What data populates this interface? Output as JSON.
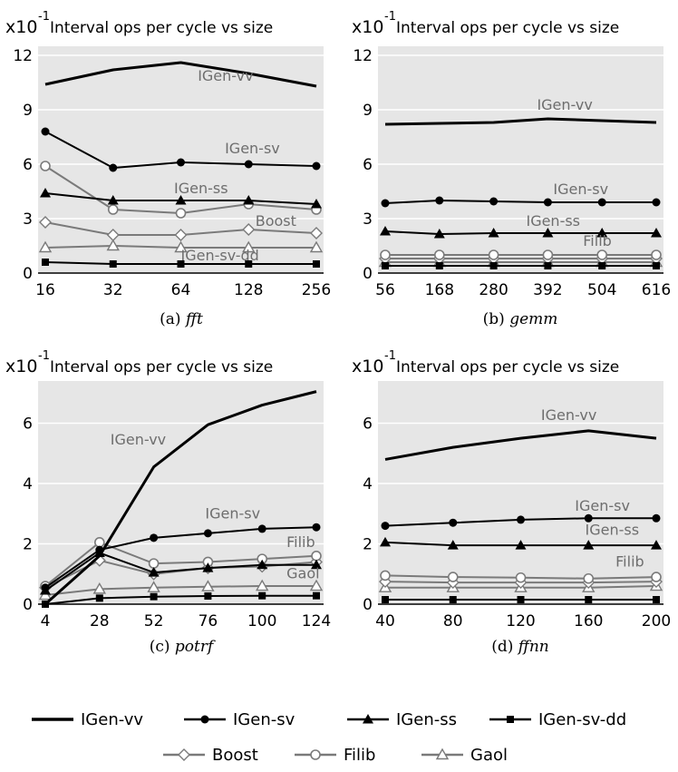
{
  "chart_data": [
    {
      "id": "a",
      "type": "line",
      "scale_label": "x10",
      "scale_exp": "-1",
      "title": "Interval ops per cycle vs size",
      "caption_prefix": "(a) ",
      "caption_name": "fft",
      "xticks": [
        "16",
        "32",
        "64",
        "128",
        "256"
      ],
      "yticks": [
        "0",
        "3",
        "6",
        "9",
        "12"
      ],
      "ylim": [
        0,
        12.5
      ],
      "xlim": [
        0,
        4
      ],
      "series": [
        {
          "name": "IGen-vv",
          "key": "vv",
          "values": [
            10.4,
            11.2,
            11.6,
            11.0,
            10.3
          ],
          "label_at": [
            2.25,
            10.6
          ]
        },
        {
          "name": "IGen-sv",
          "key": "sv",
          "values": [
            7.8,
            5.8,
            6.1,
            6.0,
            5.9
          ],
          "label_at": [
            2.65,
            6.6
          ]
        },
        {
          "name": "IGen-ss",
          "key": "ss",
          "values": [
            4.4,
            4.0,
            4.0,
            4.0,
            3.8
          ],
          "label_at": [
            1.9,
            4.4
          ]
        },
        {
          "name": "Boost",
          "key": "boost",
          "values": [
            2.8,
            2.1,
            2.1,
            2.4,
            2.2
          ],
          "label_at": [
            3.1,
            2.6
          ]
        },
        {
          "name": "Filib",
          "key": "filib",
          "values": [
            5.9,
            3.5,
            3.3,
            3.8,
            3.5
          ],
          "label_at": null
        },
        {
          "name": "Gaol",
          "key": "gaol",
          "values": [
            1.4,
            1.5,
            1.4,
            1.4,
            1.4
          ],
          "label_at": null
        },
        {
          "name": "IGen-sv-dd",
          "key": "svdd",
          "values": [
            0.6,
            0.5,
            0.5,
            0.5,
            0.5
          ],
          "label_at": [
            2.0,
            0.7
          ]
        }
      ]
    },
    {
      "id": "b",
      "type": "line",
      "scale_label": "x10",
      "scale_exp": "-1",
      "title": "Interval ops per cycle vs size",
      "caption_prefix": "(b) ",
      "caption_name": "gemm",
      "xticks": [
        "56",
        "168",
        "280",
        "392",
        "504",
        "616"
      ],
      "yticks": [
        "0",
        "3",
        "6",
        "9",
        "12"
      ],
      "ylim": [
        0,
        12.5
      ],
      "xlim": [
        0,
        5
      ],
      "series": [
        {
          "name": "IGen-vv",
          "key": "vv",
          "values": [
            8.2,
            8.25,
            8.3,
            8.5,
            8.4,
            8.3
          ],
          "label_at": [
            2.8,
            9.0
          ]
        },
        {
          "name": "IGen-sv",
          "key": "sv",
          "values": [
            3.85,
            4.0,
            3.95,
            3.9,
            3.9,
            3.9
          ],
          "label_at": [
            3.1,
            4.35
          ]
        },
        {
          "name": "IGen-ss",
          "key": "ss",
          "values": [
            2.3,
            2.15,
            2.2,
            2.2,
            2.2,
            2.2
          ],
          "label_at": [
            2.6,
            2.6
          ]
        },
        {
          "name": "Filib",
          "key": "filib",
          "values": [
            1.0,
            1.0,
            1.0,
            1.0,
            1.0,
            1.0
          ],
          "label_at": [
            3.65,
            1.5
          ]
        },
        {
          "name": "Boost",
          "key": "boost",
          "values": [
            0.8,
            0.8,
            0.8,
            0.8,
            0.8,
            0.8
          ],
          "label_at": null
        },
        {
          "name": "Gaol",
          "key": "gaol",
          "values": [
            0.6,
            0.6,
            0.6,
            0.6,
            0.6,
            0.6
          ],
          "label_at": null
        },
        {
          "name": "IGen-sv-dd",
          "key": "svdd",
          "values": [
            0.4,
            0.4,
            0.4,
            0.4,
            0.4,
            0.4
          ],
          "label_at": null
        }
      ]
    },
    {
      "id": "c",
      "type": "line",
      "scale_label": "x10",
      "scale_exp": "-1",
      "title": "Interval ops per cycle vs size",
      "caption_prefix": "(c) ",
      "caption_name": "potrf",
      "xticks": [
        "4",
        "28",
        "52",
        "76",
        "100",
        "124"
      ],
      "yticks": [
        "0",
        "2",
        "4",
        "6"
      ],
      "ylim": [
        0,
        7.4
      ],
      "xlim": [
        0,
        5
      ],
      "series": [
        {
          "name": "IGen-vv",
          "key": "vv",
          "values": [
            0.0,
            1.6,
            4.55,
            5.95,
            6.6,
            7.05
          ],
          "label_at": [
            1.2,
            5.3
          ]
        },
        {
          "name": "IGen-sv",
          "key": "sv",
          "values": [
            0.55,
            1.8,
            2.2,
            2.35,
            2.5,
            2.55
          ],
          "label_at": [
            2.95,
            2.85
          ]
        },
        {
          "name": "IGen-ss",
          "key": "ss",
          "values": [
            0.45,
            1.7,
            1.05,
            1.2,
            1.3,
            1.3
          ],
          "label_at": null
        },
        {
          "name": "Boost",
          "key": "boost",
          "values": [
            0.55,
            1.45,
            1.0,
            1.2,
            1.25,
            1.4
          ],
          "label_at": null
        },
        {
          "name": "Filib",
          "key": "filib",
          "values": [
            0.6,
            2.05,
            1.35,
            1.4,
            1.5,
            1.6
          ],
          "label_at": [
            4.45,
            1.9
          ]
        },
        {
          "name": "Gaol",
          "key": "gaol",
          "values": [
            0.3,
            0.5,
            0.55,
            0.58,
            0.6,
            0.6
          ],
          "label_at": [
            4.45,
            0.85
          ]
        },
        {
          "name": "IGen-sv-dd",
          "key": "svdd",
          "values": [
            0.0,
            0.2,
            0.25,
            0.27,
            0.28,
            0.28
          ],
          "label_at": null
        }
      ]
    },
    {
      "id": "d",
      "type": "line",
      "scale_label": "x10",
      "scale_exp": "-1",
      "title": "Interval ops per cycle vs size",
      "caption_prefix": "(d) ",
      "caption_name": "ffnn",
      "xticks": [
        "40",
        "80",
        "120",
        "160",
        "200"
      ],
      "yticks": [
        "0",
        "2",
        "4",
        "6"
      ],
      "ylim": [
        0,
        7.4
      ],
      "xlim": [
        0,
        4
      ],
      "series": [
        {
          "name": "IGen-vv",
          "key": "vv",
          "values": [
            4.8,
            5.2,
            5.5,
            5.75,
            5.5
          ],
          "label_at": [
            2.3,
            6.1
          ]
        },
        {
          "name": "IGen-sv",
          "key": "sv",
          "values": [
            2.6,
            2.7,
            2.8,
            2.85,
            2.85
          ],
          "label_at": [
            2.8,
            3.1
          ]
        },
        {
          "name": "IGen-ss",
          "key": "ss",
          "values": [
            2.05,
            1.95,
            1.95,
            1.95,
            1.95
          ],
          "label_at": [
            2.95,
            2.3
          ]
        },
        {
          "name": "Filib",
          "key": "filib",
          "values": [
            0.95,
            0.9,
            0.88,
            0.85,
            0.9
          ],
          "label_at": [
            3.4,
            1.25
          ]
        },
        {
          "name": "Boost",
          "key": "boost",
          "values": [
            0.75,
            0.72,
            0.72,
            0.72,
            0.75
          ],
          "label_at": null
        },
        {
          "name": "Gaol",
          "key": "gaol",
          "values": [
            0.55,
            0.55,
            0.55,
            0.55,
            0.6
          ],
          "label_at": null
        },
        {
          "name": "IGen-sv-dd",
          "key": "svdd",
          "values": [
            0.15,
            0.15,
            0.15,
            0.15,
            0.15
          ],
          "label_at": null
        }
      ]
    }
  ],
  "legend": {
    "row1": [
      {
        "key": "vv",
        "label": "IGen-vv"
      },
      {
        "key": "sv",
        "label": "IGen-sv"
      },
      {
        "key": "ss",
        "label": "IGen-ss"
      },
      {
        "key": "svdd",
        "label": "IGen-sv-dd"
      }
    ],
    "row2": [
      {
        "key": "boost",
        "label": "Boost"
      },
      {
        "key": "filib",
        "label": "Filib"
      },
      {
        "key": "gaol",
        "label": "Gaol"
      }
    ]
  },
  "styles": {
    "plot_bg": "#e6e6e6",
    "label_color": "#6e6e6e",
    "vv": {
      "color": "#000000",
      "width": 3,
      "marker": "none"
    },
    "sv": {
      "color": "#000000",
      "width": 2,
      "marker": "circle-filled"
    },
    "ss": {
      "color": "#000000",
      "width": 2,
      "marker": "triangle-filled"
    },
    "svdd": {
      "color": "#000000",
      "width": 2,
      "marker": "square-filled"
    },
    "boost": {
      "color": "#7a7a7a",
      "width": 2,
      "marker": "diamond-open"
    },
    "filib": {
      "color": "#7a7a7a",
      "width": 2,
      "marker": "circle-open"
    },
    "gaol": {
      "color": "#7a7a7a",
      "width": 2,
      "marker": "triangle-open"
    }
  }
}
